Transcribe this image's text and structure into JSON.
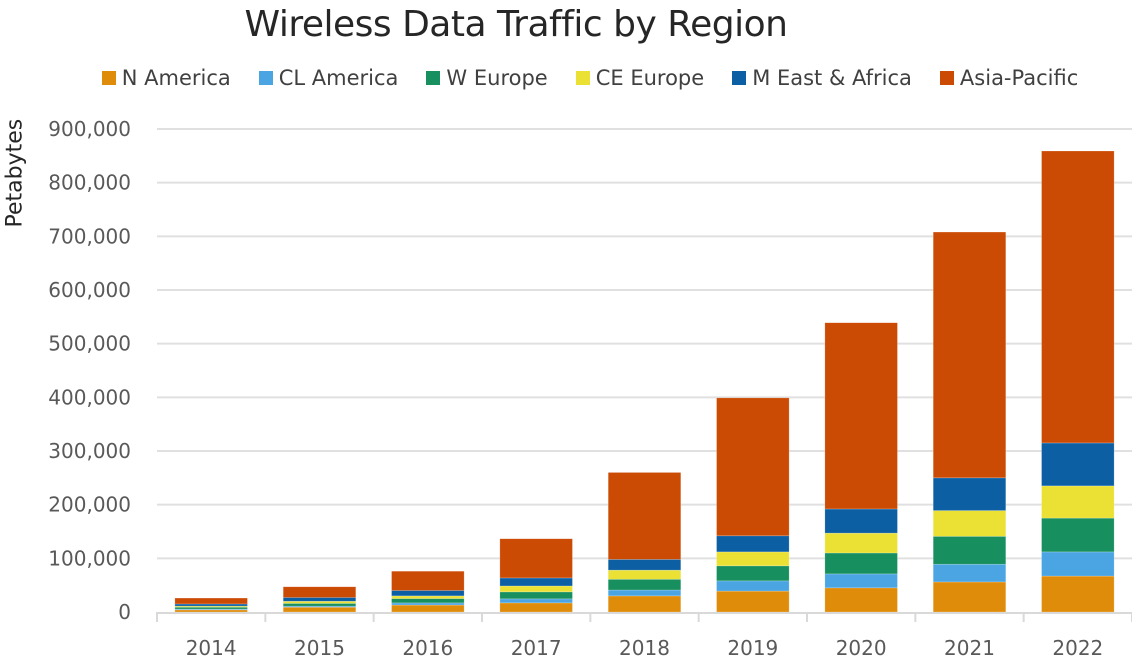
{
  "chart_data": {
    "type": "bar",
    "stacked": true,
    "title": "Wireless Data Traffic by Region",
    "xlabel": "",
    "ylabel": "Petabytes",
    "ylim": [
      0,
      900000
    ],
    "yticks": [
      0,
      100000,
      200000,
      300000,
      400000,
      500000,
      600000,
      700000,
      800000,
      900000
    ],
    "ytick_labels": [
      "0",
      "100,000",
      "200,000",
      "300,000",
      "400,000",
      "500,000",
      "600,000",
      "700,000",
      "800,000",
      "900,000"
    ],
    "grid": true,
    "legend_position": "top",
    "categories": [
      "2014",
      "2015",
      "2016",
      "2017",
      "2018",
      "2019",
      "2020",
      "2021",
      "2022"
    ],
    "series": [
      {
        "name": "N America",
        "color": "#E08C0B",
        "values": [
          4000,
          9000,
          13000,
          17000,
          30000,
          39000,
          45000,
          56000,
          67000
        ]
      },
      {
        "name": "CL America",
        "color": "#4BA5E3",
        "values": [
          1500,
          2000,
          4000,
          7500,
          11000,
          19000,
          26000,
          33000,
          45000
        ]
      },
      {
        "name": "W Europe",
        "color": "#178F5E",
        "values": [
          3500,
          5000,
          8000,
          13000,
          20000,
          28000,
          39000,
          52000,
          63000
        ]
      },
      {
        "name": "CE Europe",
        "color": "#EBE034",
        "values": [
          2000,
          4000,
          5000,
          11000,
          17000,
          26000,
          37000,
          48000,
          60000
        ]
      },
      {
        "name": "M East & Africa",
        "color": "#0D5FA3",
        "values": [
          4000,
          7000,
          10000,
          15000,
          20000,
          30000,
          45000,
          61000,
          80000
        ]
      },
      {
        "name": "Asia-Pacific",
        "color": "#CB4A04",
        "values": [
          11000,
          20000,
          36000,
          73000,
          162000,
          257000,
          347000,
          458000,
          544000
        ]
      }
    ]
  }
}
